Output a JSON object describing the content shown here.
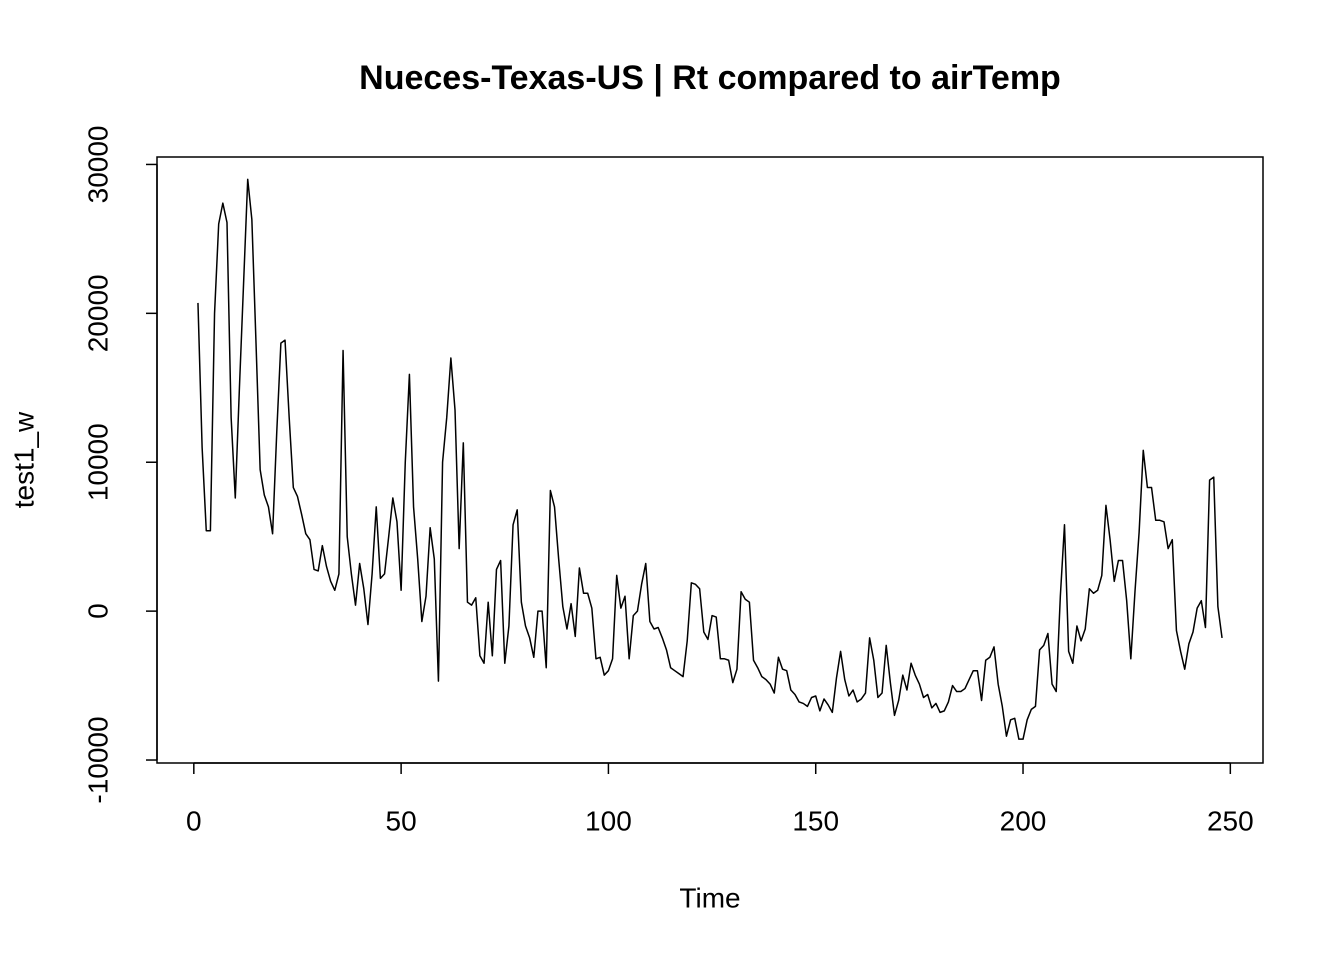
{
  "chart_data": {
    "type": "line",
    "title": "Nueces-Texas-US | Rt compared to airTemp",
    "xlabel": "Time",
    "ylabel": "test1_w",
    "color": "#000000",
    "xlim": [
      -8.88,
      257.88
    ],
    "ylim": [
      -10200,
      30500
    ],
    "xticks": [
      0,
      50,
      100,
      150,
      200,
      250
    ],
    "yticks": [
      -10000,
      0,
      10000,
      20000,
      30000
    ],
    "x": [
      1,
      2,
      3,
      4,
      5,
      6,
      7,
      8,
      9,
      10,
      11,
      12,
      13,
      14,
      15,
      16,
      17,
      18,
      19,
      20,
      21,
      22,
      23,
      24,
      25,
      26,
      27,
      28,
      29,
      30,
      31,
      32,
      33,
      34,
      35,
      36,
      37,
      38,
      39,
      40,
      41,
      42,
      43,
      44,
      45,
      46,
      47,
      48,
      49,
      50,
      51,
      52,
      53,
      54,
      55,
      56,
      57,
      58,
      59,
      60,
      61,
      62,
      63,
      64,
      65,
      66,
      67,
      68,
      69,
      70,
      71,
      72,
      73,
      74,
      75,
      76,
      77,
      78,
      79,
      80,
      81,
      82,
      83,
      84,
      85,
      86,
      87,
      88,
      89,
      90,
      91,
      92,
      93,
      94,
      95,
      96,
      97,
      98,
      99,
      100,
      101,
      102,
      103,
      104,
      105,
      106,
      107,
      108,
      109,
      110,
      111,
      112,
      113,
      114,
      115,
      116,
      117,
      118,
      119,
      120,
      121,
      122,
      123,
      124,
      125,
      126,
      127,
      128,
      129,
      130,
      131,
      132,
      133,
      134,
      135,
      136,
      137,
      138,
      139,
      140,
      141,
      142,
      143,
      144,
      145,
      146,
      147,
      148,
      149,
      150,
      151,
      152,
      153,
      154,
      155,
      156,
      157,
      158,
      159,
      160,
      161,
      162,
      163,
      164,
      165,
      166,
      167,
      168,
      169,
      170,
      171,
      172,
      173,
      174,
      175,
      176,
      177,
      178,
      179,
      180,
      181,
      182,
      183,
      184,
      185,
      186,
      187,
      188,
      189,
      190,
      191,
      192,
      193,
      194,
      195,
      196,
      197,
      198,
      199,
      200,
      201,
      202,
      203,
      204,
      205,
      206,
      207,
      208,
      209,
      210,
      211,
      212,
      213,
      214,
      215,
      216,
      217,
      218,
      219,
      220,
      221,
      222,
      223,
      224,
      225,
      226,
      227,
      228,
      229,
      230,
      231,
      232,
      233,
      234,
      235,
      236,
      237,
      238,
      239,
      240,
      241,
      242,
      243,
      244,
      245,
      246,
      247,
      248
    ],
    "values": [
      20700,
      11000,
      5400,
      5400,
      20000,
      26000,
      27400,
      26100,
      13000,
      7600,
      15000,
      22000,
      29000,
      26300,
      18000,
      9500,
      7800,
      7000,
      5200,
      12000,
      18000,
      18200,
      13000,
      8300,
      7700,
      6500,
      5200,
      4800,
      2800,
      2700,
      4400,
      3000,
      2000,
      1400,
      2500,
      17500,
      5000,
      2500,
      400,
      3200,
      1500,
      -900,
      2500,
      7000,
      2200,
      2500,
      5000,
      7600,
      6000,
      1400,
      10000,
      15900,
      7000,
      3500,
      -700,
      1000,
      5600,
      3500,
      -4700,
      10000,
      13000,
      17000,
      13500,
      4200,
      11300,
      600,
      400,
      900,
      -3000,
      -3500,
      600,
      -3000,
      2800,
      3400,
      -3500,
      -1000,
      5800,
      6800,
      600,
      -1000,
      -1800,
      -3100,
      0,
      0,
      -3800,
      8100,
      7000,
      3500,
      300,
      -1200,
      500,
      -1700,
      2900,
      1200,
      1200,
      200,
      -3200,
      -3100,
      -4300,
      -4000,
      -3200,
      2400,
      200,
      1000,
      -3200,
      -300,
      0,
      1800,
      3200,
      -700,
      -1200,
      -1100,
      -1800,
      -2600,
      -3800,
      -4000,
      -4200,
      -4400,
      -2000,
      1900,
      1800,
      1500,
      -1400,
      -1900,
      -300,
      -400,
      -3200,
      -3200,
      -3300,
      -4800,
      -3900,
      1300,
      800,
      600,
      -3300,
      -3800,
      -4400,
      -4600,
      -4900,
      -5500,
      -3100,
      -3900,
      -4000,
      -5300,
      -5600,
      -6100,
      -6200,
      -6400,
      -5800,
      -5700,
      -6700,
      -5900,
      -6300,
      -6800,
      -4500,
      -2700,
      -4600,
      -5700,
      -5300,
      -6100,
      -5900,
      -5500,
      -1800,
      -3300,
      -5800,
      -5500,
      -2300,
      -4800,
      -7000,
      -6000,
      -4300,
      -5300,
      -3500,
      -4300,
      -4900,
      -5800,
      -5600,
      -6500,
      -6200,
      -6800,
      -6700,
      -6100,
      -5000,
      -5400,
      -5400,
      -5200,
      -4600,
      -4000,
      -4000,
      -6000,
      -3300,
      -3100,
      -2400,
      -4900,
      -6400,
      -8400,
      -7300,
      -7200,
      -8600,
      -8600,
      -7300,
      -6600,
      -6400,
      -2600,
      -2300,
      -1500,
      -4900,
      -5400,
      1000,
      5800,
      -2700,
      -3500,
      -1000,
      -2000,
      -1200,
      1500,
      1200,
      1400,
      2400,
      7100,
      4800,
      2000,
      3400,
      3400,
      700,
      -3200,
      1300,
      5300,
      10800,
      8300,
      8300,
      6100,
      6100,
      6000,
      4200,
      4800,
      -1300,
      -2700,
      -3900,
      -2200,
      -1400,
      200,
      700,
      -1100,
      8800,
      9000,
      300,
      -1800
    ]
  }
}
